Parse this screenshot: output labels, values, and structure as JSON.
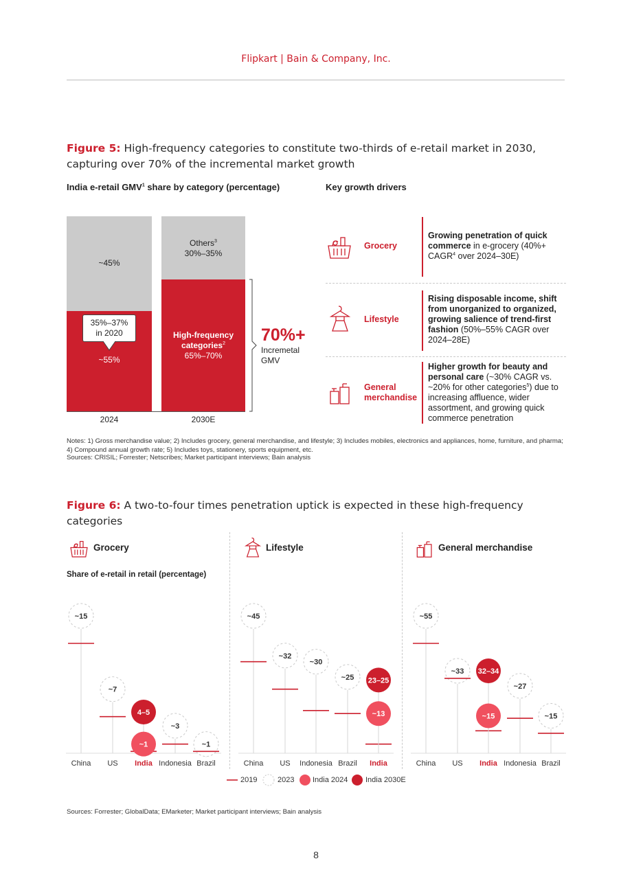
{
  "header": {
    "text": "Flipkart | Bain & Company, Inc."
  },
  "figure5": {
    "title_prefix": "Figure 5:",
    "title_text": " High-frequency categories to constitute two-thirds of e-retail market in 2030, capturing over 70% of the incremental market growth",
    "chart_heading": "India e-retail GMV",
    "chart_heading_sup": "1",
    "chart_heading_tail": " share by category (percentage)",
    "drivers_heading": "Key growth drivers",
    "bars": {
      "bar2024": {
        "top_label": "~45%",
        "bottom_label": "~55%",
        "callout_line1": "35%–37%",
        "callout_line2": "in 2020",
        "axis": "2024"
      },
      "bar2030": {
        "top_label1": "Others",
        "top_label1_sup": "3",
        "top_label2": "30%–35%",
        "bottom_label1": "High-frequency",
        "bottom_label2": "categories",
        "bottom_label2_sup": "2",
        "bottom_label3": "65%–70%",
        "axis": "2030E"
      }
    },
    "incremental": {
      "value": "70%+",
      "line1": "Incremetal",
      "line2": "GMV"
    },
    "drivers": [
      {
        "name": "Grocery",
        "icon": "grocery-basket-icon",
        "bold": "Growing penetration of quick commerce",
        "rest": " in e-grocery (40%+ CAGR",
        "sup": "4",
        "rest2": " over 2024–30E)"
      },
      {
        "name": "Lifestyle",
        "icon": "dress-hanger-icon",
        "bold": "Rising disposable income, shift from unorganized to organized, growing salience of trend-first fashion",
        "rest": " (50%–55% CAGR over 2024–28E)"
      },
      {
        "name1": "General",
        "name2": "merchandise",
        "icon": "general-merchandise-icon",
        "bold": "Higher growth for beauty and personal care",
        "rest": " (~30% CAGR vs. ~20% for other categories",
        "sup": "5",
        "rest2": ") due to increasing affluence, wider assortment, and growing quick commerce penetration"
      }
    ],
    "notes_line1": "Notes: 1) Gross merchandise value; 2) Includes grocery, general merchandise, and lifestyle; 3) Includes mobiles, electronics and appliances, home, furniture, and pharma; 4) Compound annual growth rate; 5) Includes toys, stationery, sports equipment, etc.",
    "sources": "Sources: CRISIL; Forrester; Netscribes; Market participant interviews; Bain analysis"
  },
  "figure6": {
    "title_prefix": "Figure 6:",
    "title_text": " A two-to-four times penetration uptick is expected in these high-frequency categories",
    "y_label": "Share of e-retail in retail (percentage)",
    "panels": [
      {
        "title": "Grocery",
        "icon": "grocery-basket-icon"
      },
      {
        "title": "Lifestyle",
        "icon": "dress-hanger-icon"
      },
      {
        "title": "General merchandise",
        "icon": "general-merchandise-icon"
      }
    ],
    "legend": {
      "l2019": "2019",
      "l2023": "2023",
      "lindia2024": "India 2024",
      "lindia2030": "India 2030E"
    },
    "sources": "Sources: Forrester; GlobalData; EMarketer; Market participant interviews; Bain analysis"
  },
  "chart_data": [
    {
      "type": "bar",
      "title": "India e-retail GMV share by category (percentage)",
      "categories": [
        "2024",
        "2030E"
      ],
      "series": [
        {
          "name": "High-frequency categories",
          "values": [
            "~55%",
            "65%–70%"
          ]
        },
        {
          "name": "Others",
          "values": [
            "~45%",
            "30%–35%"
          ]
        }
      ],
      "annotations": [
        "35%–37% in 2020",
        "70%+ Incremetal GMV"
      ]
    },
    {
      "type": "scatter",
      "title": "Grocery",
      "ylabel": "Share of e-retail in retail (percentage)",
      "x": [
        "China",
        "US",
        "India",
        "Indonesia",
        "Brazil"
      ],
      "series_2019": [
        12,
        4,
        0.2,
        1,
        0.2
      ],
      "series_2023": [
        15,
        7,
        null,
        3,
        1
      ],
      "labels_2023": [
        "~15",
        "~7",
        "",
        "~3",
        "~1"
      ],
      "india_2024": {
        "value": 1,
        "label": "~1"
      },
      "india_2030e": {
        "value": 4.5,
        "label": "4–5"
      },
      "ylim": [
        0,
        23
      ]
    },
    {
      "type": "scatter",
      "title": "Lifestyle",
      "x": [
        "China",
        "US",
        "Indonesia",
        "Brazil",
        "India"
      ],
      "series_2019": [
        30,
        21,
        14,
        13,
        3
      ],
      "series_2023": [
        45,
        32,
        30,
        25,
        null
      ],
      "labels_2023": [
        "~45",
        "~32",
        "~30",
        "~25",
        ""
      ],
      "india_2024": {
        "value": 13,
        "label": "~13"
      },
      "india_2030e": {
        "value": 24,
        "label": "23–25"
      },
      "ylim": [
        0,
        55
      ]
    },
    {
      "type": "scatter",
      "title": "General merchandise",
      "x": [
        "China",
        "US",
        "India",
        "Indonesia",
        "Brazil"
      ],
      "series_2019": [
        44,
        30,
        null,
        14,
        8
      ],
      "series_2023": [
        55,
        33,
        null,
        27,
        15
      ],
      "labels_2023": [
        "~55",
        "~33",
        "",
        "~27",
        "~15"
      ],
      "india_2019": 9,
      "india_2024": {
        "value": 15,
        "label": "~15"
      },
      "india_2030e": {
        "value": 33,
        "label": "32–34"
      },
      "ylim": [
        0,
        65
      ]
    }
  ],
  "page_number": "8"
}
